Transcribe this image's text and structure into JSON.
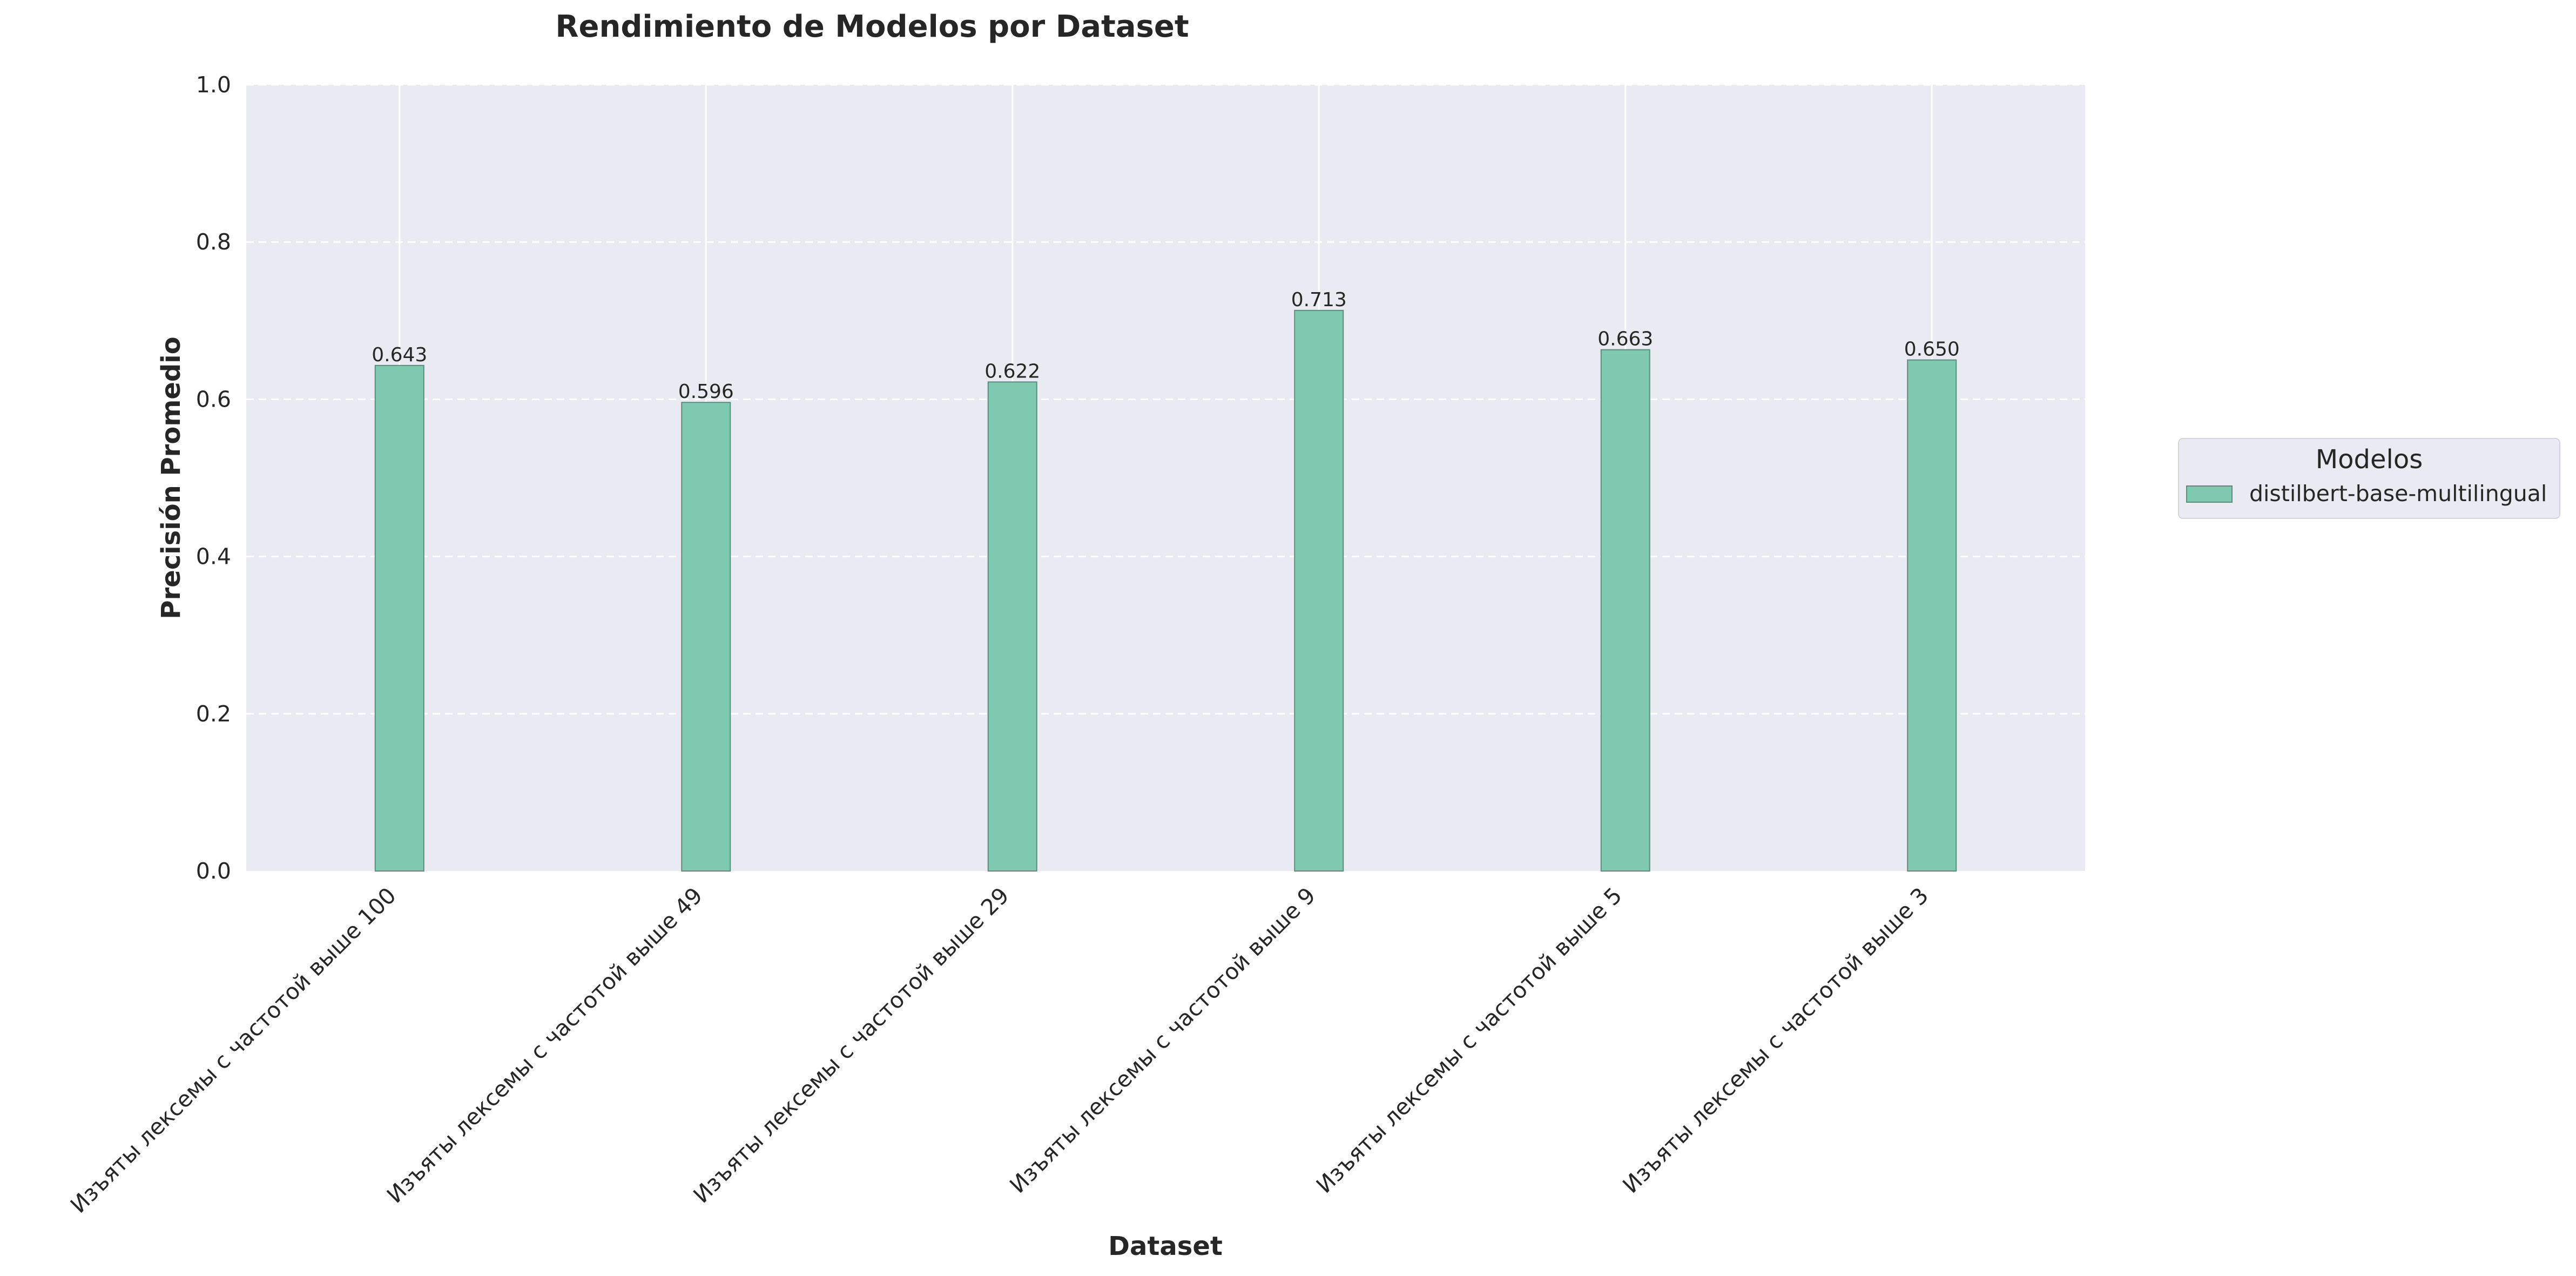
{
  "chart_data": {
    "type": "bar",
    "title": "Rendimiento de Modelos por Dataset",
    "xlabel": "Dataset",
    "ylabel": "Precisión Promedio",
    "ylim": [
      0,
      1.0
    ],
    "yticks": [
      0.0,
      0.2,
      0.4,
      0.6,
      0.8,
      1.0
    ],
    "ytick_labels": [
      "0.0",
      "0.2",
      "0.4",
      "0.6",
      "0.8",
      "1.0"
    ],
    "categories": [
      "Изъяты лексемы с частотой выше 100",
      "Изъяты лексемы с частотой выше 49",
      "Изъяты лексемы с частотой выше 29",
      "Изъяты лексемы с частотой выше 9",
      "Изъяты лексемы с частотой выше 5",
      "Изъяты лексемы с частотой выше 3"
    ],
    "series": [
      {
        "name": "distilbert-base-multilingual",
        "values": [
          0.643,
          0.596,
          0.622,
          0.713,
          0.663,
          0.65
        ],
        "labels": [
          "0.643",
          "0.596",
          "0.622",
          "0.713",
          "0.663",
          "0.650"
        ],
        "color": "#7fc9b0"
      }
    ],
    "legend": {
      "title": "Modelos",
      "placement": "right"
    },
    "grid": true,
    "colors": {
      "plot_background": "#eaeaf2",
      "grid": "#ffffff",
      "bar_edge": "#5c8c7c"
    }
  }
}
